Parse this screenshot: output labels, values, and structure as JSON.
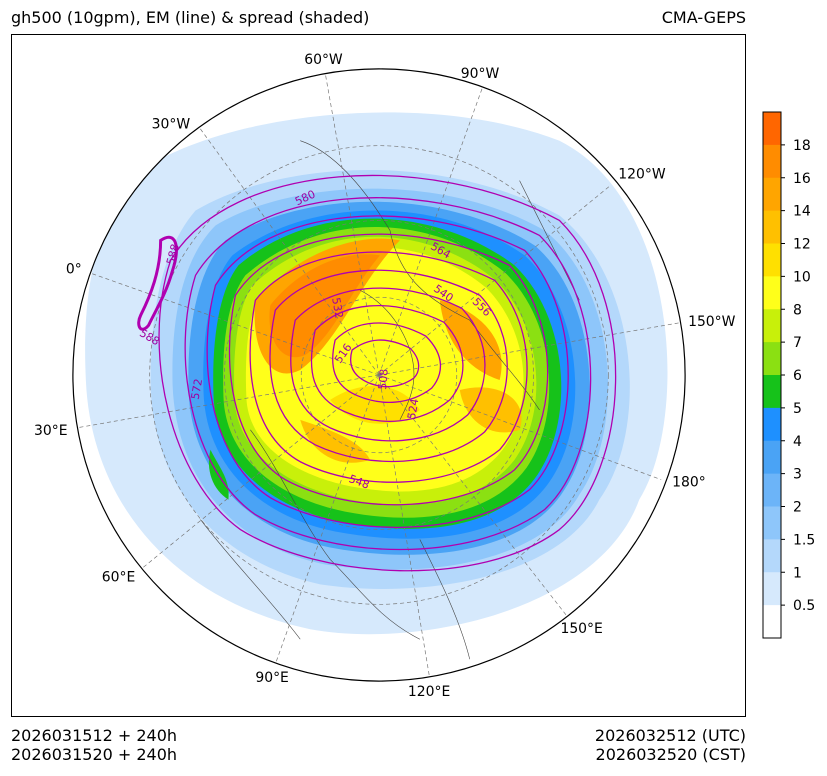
{
  "header": {
    "title": "gh500 (10gpm), EM (line) & spread (shaded)",
    "model": "CMA-GEPS"
  },
  "footer": {
    "init_utc": "2026031512 + 240h",
    "init_cst": "2026031520 + 240h",
    "valid_utc": "2026032512 (UTC)",
    "valid_cst": "2026032520 (CST)"
  },
  "map": {
    "projection": "north-polar-stereographic",
    "longitude_labels": [
      "60°W",
      "90°W",
      "30°W",
      "120°W",
      "0°",
      "150°W",
      "30°E",
      "180°",
      "60°E",
      "150°E",
      "90°E",
      "120°E"
    ],
    "contour_labels": [
      "580",
      "588",
      "588",
      "564",
      "540",
      "556",
      "532",
      "516",
      "508",
      "524",
      "572",
      "548"
    ]
  },
  "colorbar": {
    "ticks": [
      "18",
      "16",
      "14",
      "12",
      "10",
      "8",
      "7",
      "6",
      "5",
      "4",
      "3",
      "2",
      "1.5",
      "1",
      "0.5"
    ],
    "colors": [
      "#ff6600",
      "#ff8c00",
      "#ffa500",
      "#ffc000",
      "#ffe000",
      "#ffff1a",
      "#c8f00a",
      "#8be012",
      "#16c21a",
      "#1e90ff",
      "#4aa3f5",
      "#6cb4f8",
      "#8ec6fa",
      "#b4d8fb",
      "#d6e9fc",
      "#ffffff"
    ]
  }
}
